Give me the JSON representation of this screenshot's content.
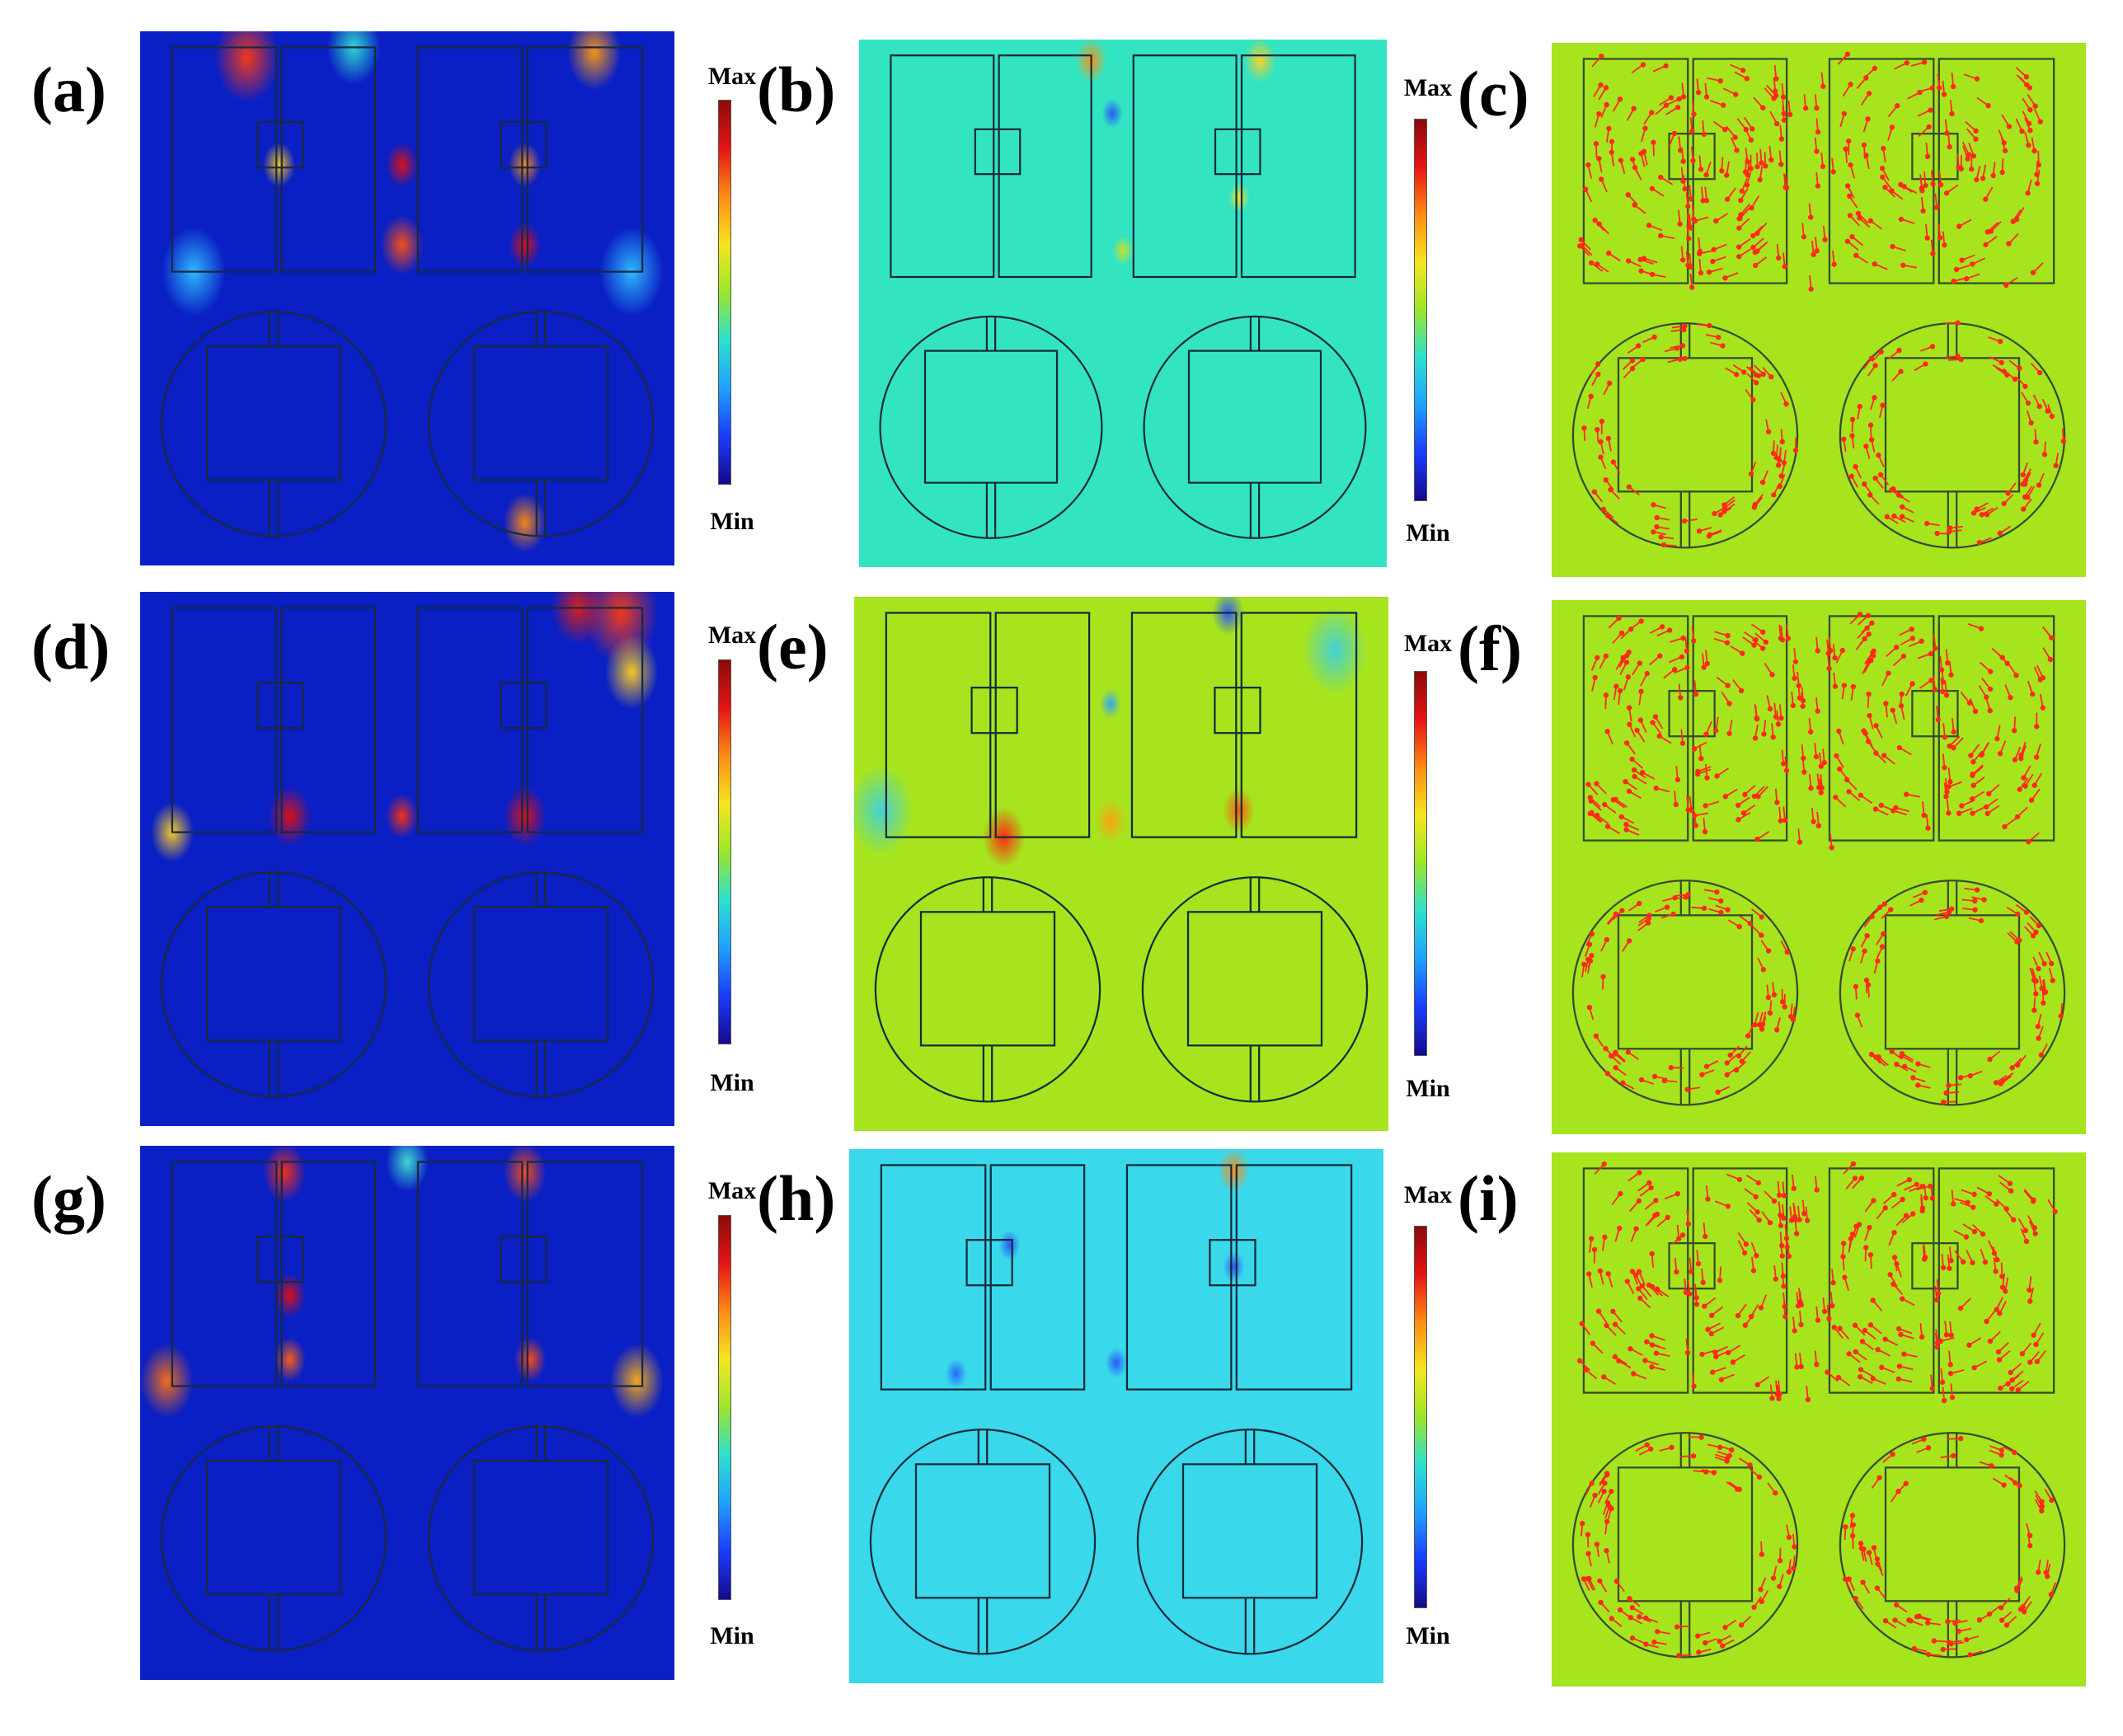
{
  "figure": {
    "panels": [
      {
        "id": "a",
        "label": "(a)",
        "kind": "field-magnitude",
        "colormap": "jet",
        "background": "#0a1fc4"
      },
      {
        "id": "b",
        "label": "(b)",
        "kind": "field-magnitude",
        "colormap": "jet",
        "background": "#33e4c2"
      },
      {
        "id": "c",
        "label": "(c)",
        "kind": "vector-field",
        "background": "#a6e41e",
        "arrow_color": "#ff2a1a"
      },
      {
        "id": "d",
        "label": "(d)",
        "kind": "field-magnitude",
        "colormap": "jet",
        "background": "#0a1fc4"
      },
      {
        "id": "e",
        "label": "(e)",
        "kind": "field-magnitude",
        "colormap": "jet",
        "background": "#a6e41e"
      },
      {
        "id": "f",
        "label": "(f)",
        "kind": "vector-field",
        "background": "#a6e41e",
        "arrow_color": "#ff2a1a"
      },
      {
        "id": "g",
        "label": "(g)",
        "kind": "field-magnitude",
        "colormap": "jet",
        "background": "#0a1fc4"
      },
      {
        "id": "h",
        "label": "(h)",
        "kind": "field-magnitude",
        "colormap": "jet",
        "background": "#39d8ea"
      },
      {
        "id": "i",
        "label": "(i)",
        "kind": "vector-field",
        "background": "#a6e41e",
        "arrow_color": "#ff2a1a"
      }
    ],
    "colorbars": [
      {
        "id": "cb-a",
        "max_label": "Max",
        "min_label": "Min"
      },
      {
        "id": "cb-b",
        "max_label": "Max",
        "min_label": "Min"
      },
      {
        "id": "cb-d",
        "max_label": "Max",
        "min_label": "Min"
      },
      {
        "id": "cb-e",
        "max_label": "Max",
        "min_label": "Min"
      },
      {
        "id": "cb-g",
        "max_label": "Max",
        "min_label": "Min"
      },
      {
        "id": "cb-h",
        "max_label": "Max",
        "min_label": "Min"
      }
    ],
    "colormap_stops": [
      "#140a8c",
      "#1a3cff",
      "#1ea0ff",
      "#2de0d0",
      "#9be62a",
      "#f5e61e",
      "#ff8c14",
      "#e61414",
      "#8c0a0a"
    ]
  }
}
